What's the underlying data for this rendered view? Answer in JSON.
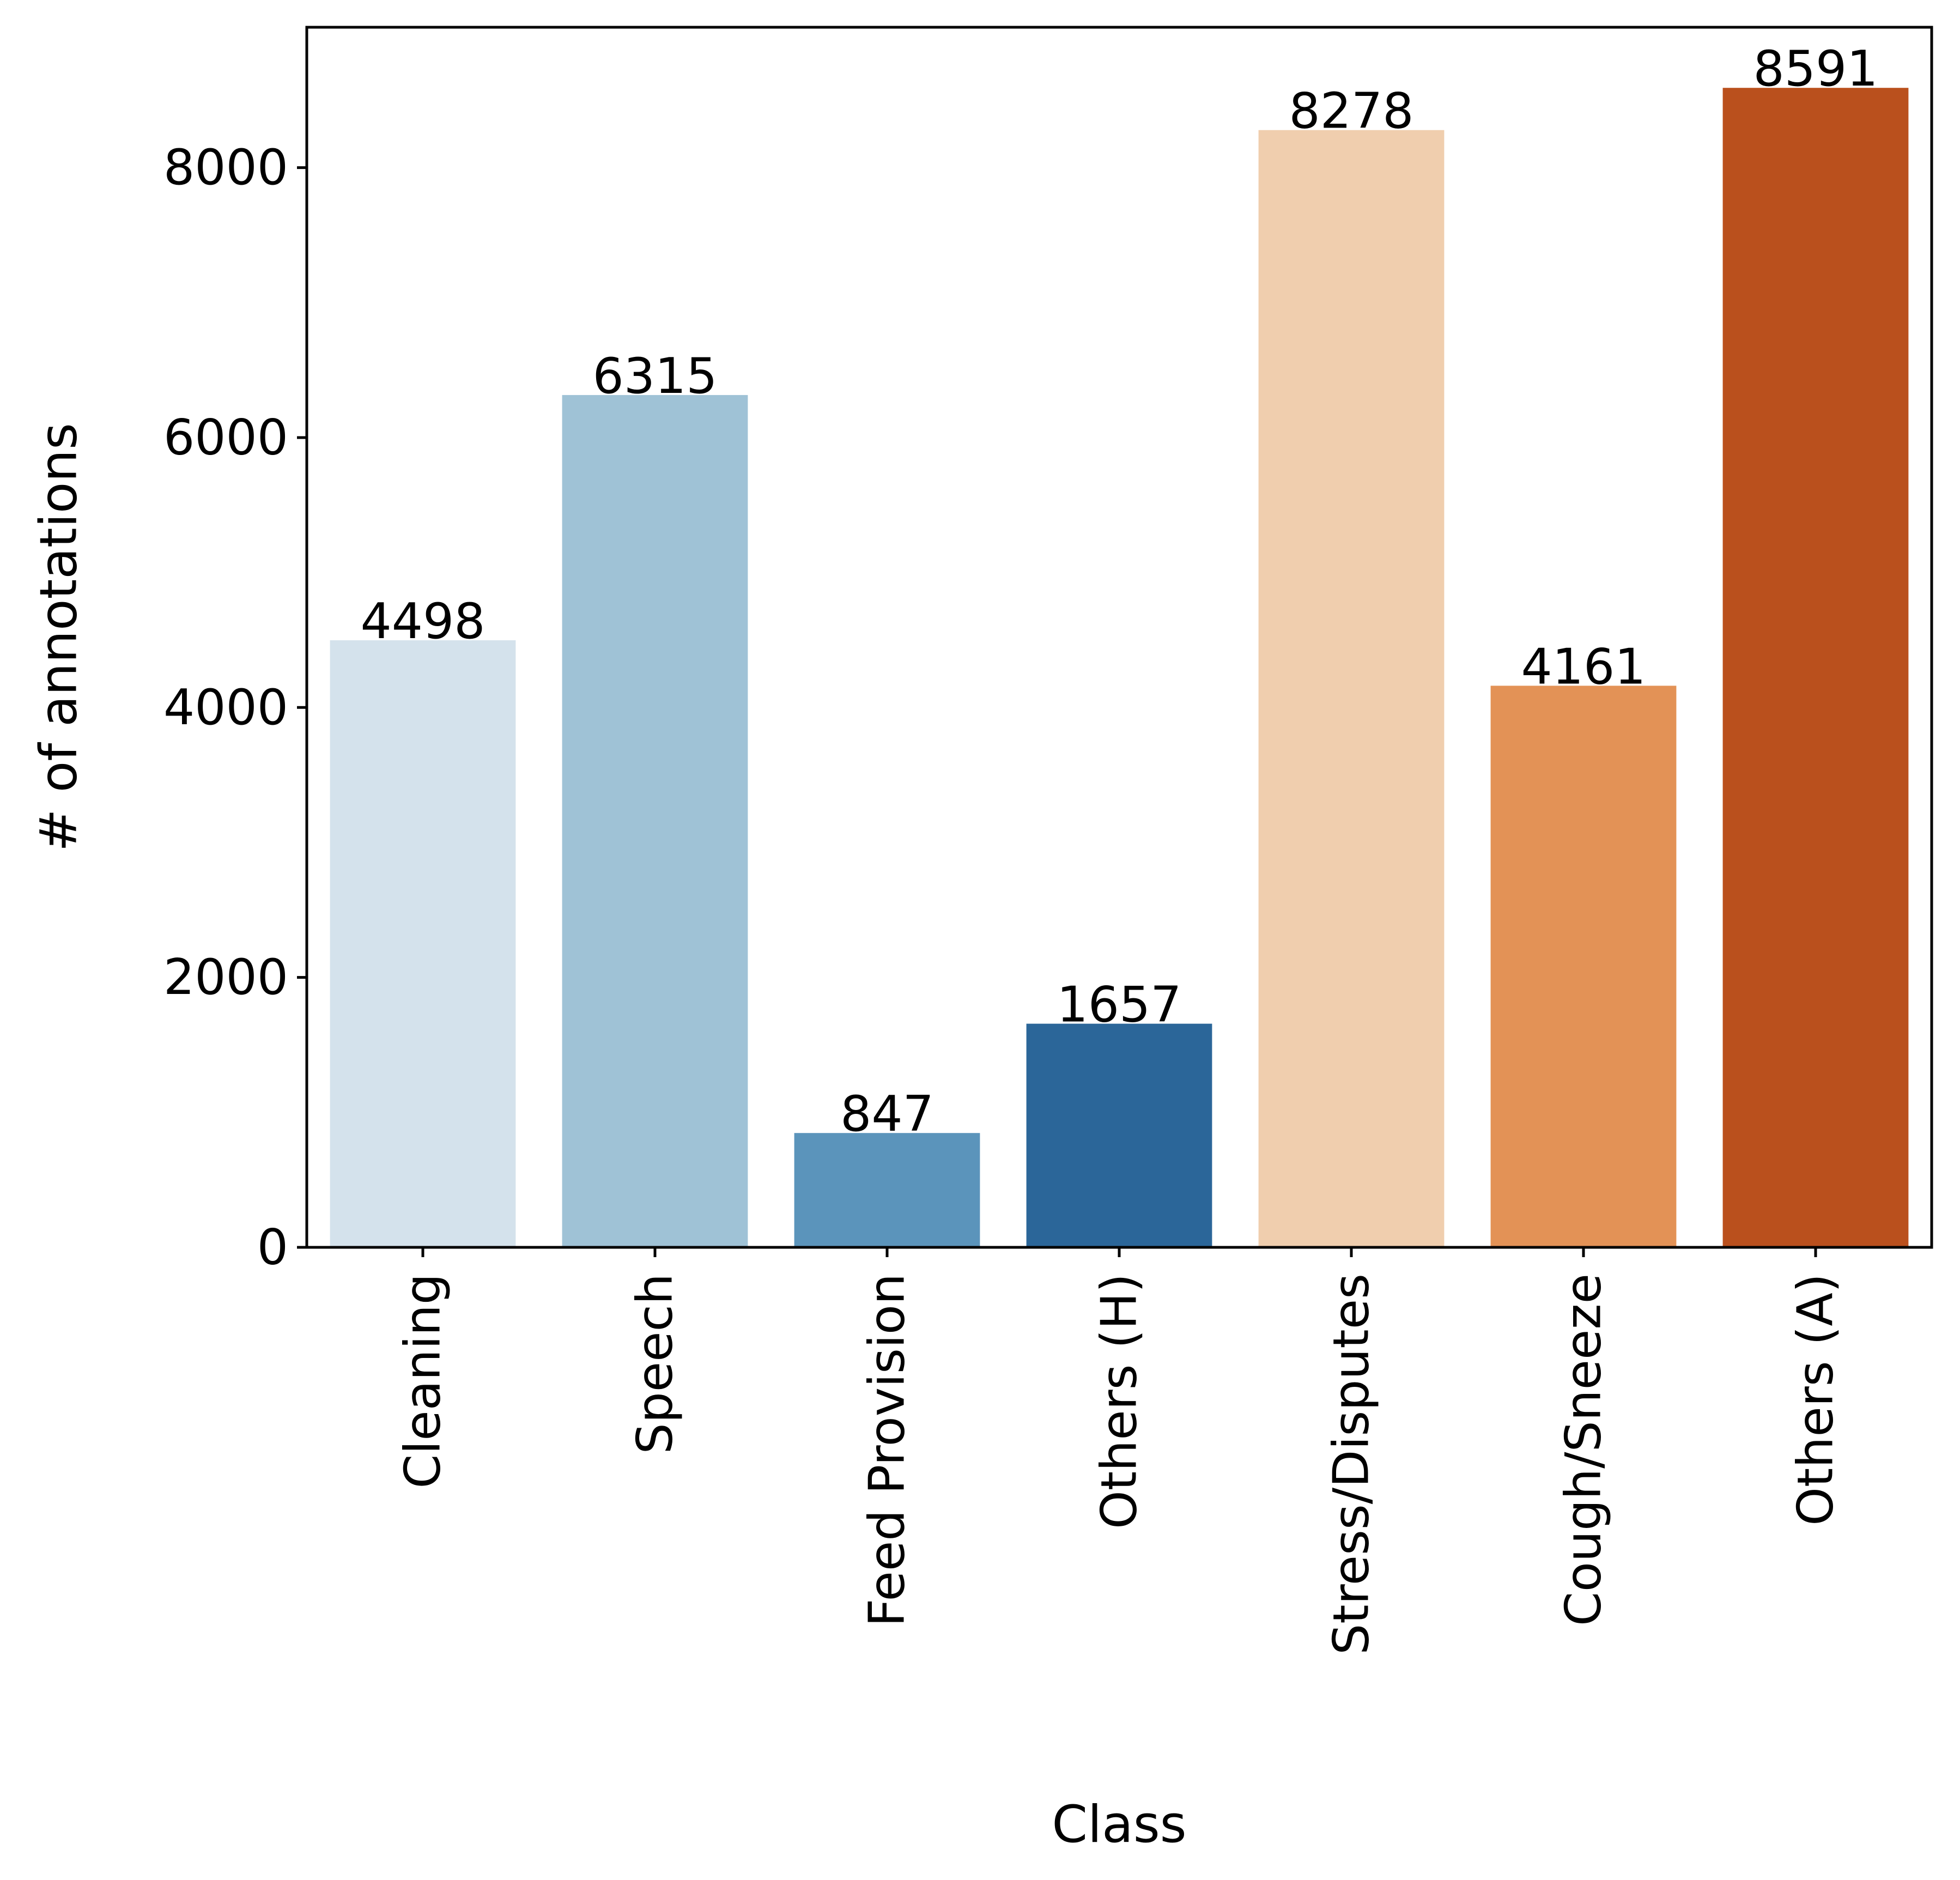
{
  "chart_data": {
    "type": "bar",
    "title": "",
    "xlabel": "Class",
    "ylabel": "# of annotations",
    "categories": [
      "Cleaning",
      "Speech",
      "Feed Provision",
      "Others (H)",
      "Stress/Disputes",
      "Cough/Sneeze",
      "Others (A)"
    ],
    "values": [
      4498,
      6315,
      847,
      1657,
      8278,
      4161,
      8591
    ],
    "data_labels": [
      "4498",
      "6315",
      "847",
      "1657",
      "8278",
      "4161",
      "8591"
    ],
    "colors": [
      "#d4e2ec",
      "#9fc2d6",
      "#5b94bb",
      "#2b6699",
      "#f0ceae",
      "#e39256",
      "#ba501d"
    ],
    "ylim": [
      0,
      9040
    ],
    "yticks": [
      0,
      2000,
      4000,
      6000,
      8000
    ],
    "ytick_labels": [
      "0",
      "2000",
      "4000",
      "6000",
      "8000"
    ],
    "grid": false,
    "legend": "none"
  }
}
